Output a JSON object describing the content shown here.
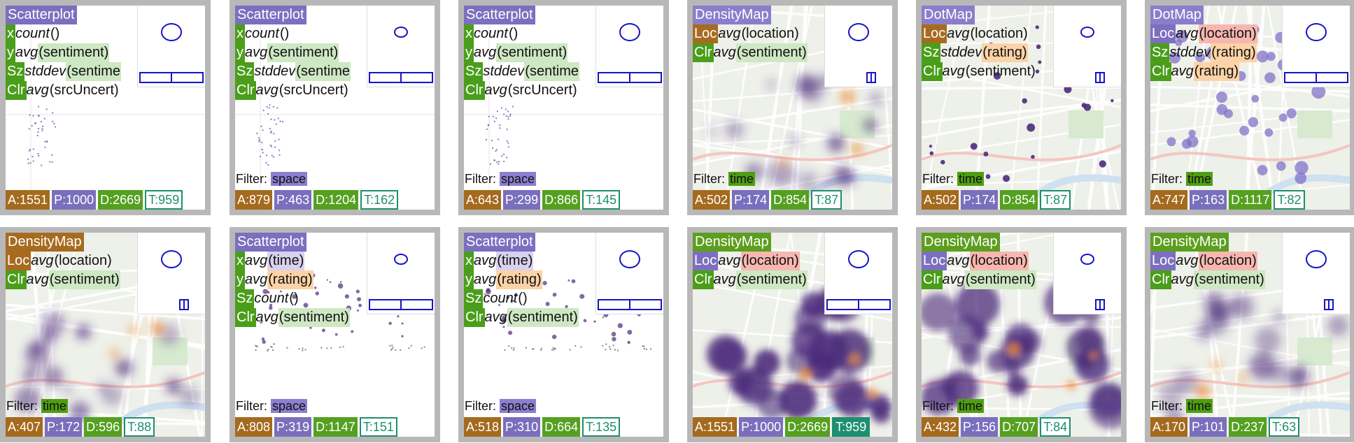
{
  "colors": {
    "title_scatter": "#7b6fbf",
    "title_map_purple": "#8a7ecb",
    "title_map_green": "#5d9e1f",
    "title_dot_purple": "#8a7ecb",
    "x_chip": "#4a9e1a",
    "y_chip": "#4a9e1a",
    "sz_chip": "#4a9e1a",
    "clr_chip": "#4a9e1a",
    "loc_chip_brown": "#a66b1f",
    "loc_chip_purple": "#7c6fc0",
    "a_stat": "#a46a1d",
    "p_stat": "#7a6fbd",
    "d_stat": "#55a020",
    "t_stat": "#1d8f6e",
    "arg_green": "#cde8c3",
    "arg_purple": "#d9d1f0",
    "arg_orange": "#fcd3a6",
    "arg_red": "#f7b7b0",
    "filter_space": "#8b7fcf",
    "filter_time": "#4f9e12",
    "mark_purple": "#4b2a7a",
    "mark_orange": "#e8892b",
    "ellipse_blue": "#1515c6"
  },
  "cells": [
    {
      "title": "Scatterplot",
      "title_color": "#7b6fbf",
      "kind": "scatter",
      "rows": [
        {
          "chip": "x",
          "chip_color": "#4a9e1a",
          "fn": "count",
          "arg": "()",
          "arg_bg": ""
        },
        {
          "chip": "y",
          "chip_color": "#4a9e1a",
          "fn": "avg",
          "arg": "(sentiment)",
          "arg_bg": "#cde8c3"
        },
        {
          "chip": "Sz",
          "chip_color": "#4a9e1a",
          "fn": "stddev",
          "arg": "(sentime",
          "arg_bg": "#cde8c3"
        },
        {
          "chip": "Clr",
          "chip_color": "#4a9e1a",
          "fn": "avg",
          "arg": "(srcUncert)",
          "arg_bg": ""
        }
      ],
      "filter": "",
      "filter_label": "",
      "stats": {
        "a": "A:1551",
        "p": "P:1000",
        "d": "D:2669",
        "t": "T:959",
        "t_solid": false
      }
    },
    {
      "title": "Scatterplot",
      "title_color": "#7b6fbf",
      "kind": "scatter",
      "rows": [
        {
          "chip": "x",
          "chip_color": "#4a9e1a",
          "fn": "count",
          "arg": "()",
          "arg_bg": ""
        },
        {
          "chip": "y",
          "chip_color": "#4a9e1a",
          "fn": "avg",
          "arg": "(sentiment)",
          "arg_bg": "#cde8c3"
        },
        {
          "chip": "Sz",
          "chip_color": "#4a9e1a",
          "fn": "stddev",
          "arg": "(sentime",
          "arg_bg": "#cde8c3"
        },
        {
          "chip": "Clr",
          "chip_color": "#4a9e1a",
          "fn": "avg",
          "arg": "(srcUncert)",
          "arg_bg": ""
        }
      ],
      "filter": "space",
      "filter_label": "Filter:",
      "stats": {
        "a": "A:879",
        "p": "P:463",
        "d": "D:1204",
        "t": "T:162",
        "t_solid": false
      }
    },
    {
      "title": "Scatterplot",
      "title_color": "#7b6fbf",
      "kind": "scatter",
      "rows": [
        {
          "chip": "x",
          "chip_color": "#4a9e1a",
          "fn": "count",
          "arg": "()",
          "arg_bg": ""
        },
        {
          "chip": "y",
          "chip_color": "#4a9e1a",
          "fn": "avg",
          "arg": "(sentiment)",
          "arg_bg": "#cde8c3"
        },
        {
          "chip": "Sz",
          "chip_color": "#4a9e1a",
          "fn": "stddev",
          "arg": "(sentime",
          "arg_bg": "#cde8c3"
        },
        {
          "chip": "Clr",
          "chip_color": "#4a9e1a",
          "fn": "avg",
          "arg": "(srcUncert)",
          "arg_bg": ""
        }
      ],
      "filter": "space",
      "filter_label": "Filter:",
      "stats": {
        "a": "A:643",
        "p": "P:299",
        "d": "D:866",
        "t": "T:145",
        "t_solid": false
      }
    },
    {
      "title": "DensityMap",
      "title_color": "#8a7ecb",
      "kind": "density",
      "rows": [
        {
          "chip": "Loc",
          "chip_color": "#a66b1f",
          "fn": "avg",
          "arg": "(location)",
          "arg_bg": ""
        },
        {
          "chip": "Clr",
          "chip_color": "#4a9e1a",
          "fn": "avg",
          "arg": "(sentiment)",
          "arg_bg": "#cde8c3"
        }
      ],
      "filter": "time",
      "filter_label": "Filter:",
      "stats": {
        "a": "A:502",
        "p": "P:174",
        "d": "D:854",
        "t": "T:87",
        "t_solid": false
      }
    },
    {
      "title": "DotMap",
      "title_color": "#8a7ecb",
      "kind": "dotmap",
      "rows": [
        {
          "chip": "Loc",
          "chip_color": "#a66b1f",
          "fn": "avg",
          "arg": "(location)",
          "arg_bg": ""
        },
        {
          "chip": "Sz",
          "chip_color": "#4a9e1a",
          "fn": "stddev",
          "arg": "(rating)",
          "arg_bg": "#fcd3a6"
        },
        {
          "chip": "Clr",
          "chip_color": "#4a9e1a",
          "fn": "avg",
          "arg": "(sentiment)",
          "arg_bg": ""
        }
      ],
      "filter": "time",
      "filter_label": "Filter:",
      "stats": {
        "a": "A:502",
        "p": "P:174",
        "d": "D:854",
        "t": "T:87",
        "t_solid": false
      }
    },
    {
      "title": "DotMap",
      "title_color": "#8a7ecb",
      "kind": "dotmap2",
      "rows": [
        {
          "chip": "Loc",
          "chip_color": "#7c6fc0",
          "fn": "avg",
          "arg": "(location)",
          "arg_bg": "#f7b7b0"
        },
        {
          "chip": "Sz",
          "chip_color": "#4a9e1a",
          "fn": "stddev",
          "arg": "(rating)",
          "arg_bg": "#fcd3a6"
        },
        {
          "chip": "Clr",
          "chip_color": "#4a9e1a",
          "fn": "avg",
          "arg": "(rating)",
          "arg_bg": "#fcd3a6"
        }
      ],
      "filter": "time",
      "filter_label": "Filter:",
      "stats": {
        "a": "A:747",
        "p": "P:163",
        "d": "D:1117",
        "t": "T:82",
        "t_solid": false
      }
    },
    {
      "title": "DensityMap",
      "title_color": "#a66b1f",
      "kind": "density",
      "rows": [
        {
          "chip": "Loc",
          "chip_color": "#a66b1f",
          "fn": "avg",
          "arg": "(location)",
          "arg_bg": ""
        },
        {
          "chip": "Clr",
          "chip_color": "#4a9e1a",
          "fn": "avg",
          "arg": "(sentiment)",
          "arg_bg": "#cde8c3"
        }
      ],
      "filter": "time",
      "filter_label": "Filter:",
      "stats": {
        "a": "A:407",
        "p": "P:172",
        "d": "D:596",
        "t": "T:88",
        "t_solid": false
      }
    },
    {
      "title": "Scatterplot",
      "title_color": "#7b6fbf",
      "kind": "scatter2",
      "rows": [
        {
          "chip": "x",
          "chip_color": "#4a9e1a",
          "fn": "avg",
          "arg": "(time)",
          "arg_bg": "#d9d1f0"
        },
        {
          "chip": "y",
          "chip_color": "#4a9e1a",
          "fn": "avg",
          "arg": "(rating)",
          "arg_bg": "#fcd3a6"
        },
        {
          "chip": "Sz",
          "chip_color": "#4a9e1a",
          "fn": "count",
          "arg": "()",
          "arg_bg": ""
        },
        {
          "chip": "Clr",
          "chip_color": "#4a9e1a",
          "fn": "avg",
          "arg": "(sentiment)",
          "arg_bg": "#cde8c3"
        }
      ],
      "filter": "space",
      "filter_label": "Filter:",
      "stats": {
        "a": "A:808",
        "p": "P:319",
        "d": "D:1147",
        "t": "T:151",
        "t_solid": false
      }
    },
    {
      "title": "Scatterplot",
      "title_color": "#7b6fbf",
      "kind": "scatter2",
      "rows": [
        {
          "chip": "x",
          "chip_color": "#4a9e1a",
          "fn": "avg",
          "arg": "(time)",
          "arg_bg": "#d9d1f0"
        },
        {
          "chip": "y",
          "chip_color": "#4a9e1a",
          "fn": "avg",
          "arg": "(rating)",
          "arg_bg": "#fcd3a6"
        },
        {
          "chip": "Sz",
          "chip_color": "#4a9e1a",
          "fn": "count",
          "arg": "()",
          "arg_bg": ""
        },
        {
          "chip": "Clr",
          "chip_color": "#4a9e1a",
          "fn": "avg",
          "arg": "(sentiment)",
          "arg_bg": "#cde8c3"
        }
      ],
      "filter": "space",
      "filter_label": "Filter:",
      "stats": {
        "a": "A:518",
        "p": "P:310",
        "d": "D:664",
        "t": "T:135",
        "t_solid": false
      }
    },
    {
      "title": "DensityMap",
      "title_color": "#5d9e1f",
      "kind": "density_heavy",
      "rows": [
        {
          "chip": "Loc",
          "chip_color": "#7c6fc0",
          "fn": "avg",
          "arg": "(location)",
          "arg_bg": "#f7b7b0"
        },
        {
          "chip": "Clr",
          "chip_color": "#4a9e1a",
          "fn": "avg",
          "arg": "(sentiment)",
          "arg_bg": "#cde8c3"
        }
      ],
      "filter": "",
      "filter_label": "",
      "stats": {
        "a": "A:1551",
        "p": "P:1000",
        "d": "D:2669",
        "t": "T:959",
        "t_solid": true
      }
    },
    {
      "title": "DensityMap",
      "title_color": "#5d9e1f",
      "kind": "density_heavy",
      "rows": [
        {
          "chip": "Loc",
          "chip_color": "#7c6fc0",
          "fn": "avg",
          "arg": "(location)",
          "arg_bg": "#f7b7b0"
        },
        {
          "chip": "Clr",
          "chip_color": "#4a9e1a",
          "fn": "avg",
          "arg": "(sentiment)",
          "arg_bg": "#cde8c3"
        }
      ],
      "filter": "time",
      "filter_label": "Filter:",
      "stats": {
        "a": "A:432",
        "p": "P:156",
        "d": "D:707",
        "t": "T:84",
        "t_solid": false
      }
    },
    {
      "title": "DensityMap",
      "title_color": "#5d9e1f",
      "kind": "density",
      "rows": [
        {
          "chip": "Loc",
          "chip_color": "#7c6fc0",
          "fn": "avg",
          "arg": "(location)",
          "arg_bg": "#f7b7b0"
        },
        {
          "chip": "Clr",
          "chip_color": "#4a9e1a",
          "fn": "avg",
          "arg": "(sentiment)",
          "arg_bg": "#cde8c3"
        }
      ],
      "filter": "time",
      "filter_label": "Filter:",
      "stats": {
        "a": "A:170",
        "p": "P:101",
        "d": "D:237",
        "t": "T:63",
        "t_solid": false
      }
    }
  ]
}
